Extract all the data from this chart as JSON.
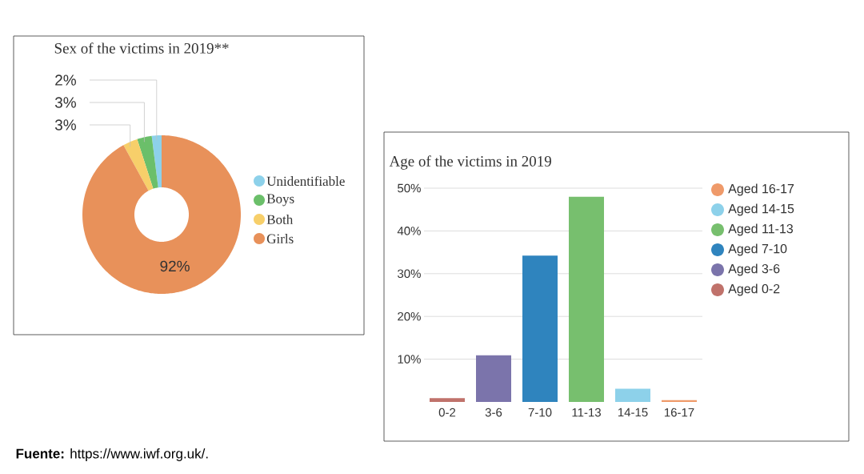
{
  "chart_data": [
    {
      "type": "donut",
      "title": "Sex of the victims in 2019**",
      "categories": [
        "Unidentifiable",
        "Boys",
        "Both",
        "Girls"
      ],
      "values": [
        2,
        3,
        3,
        92
      ],
      "colors": [
        "#8dd1ea",
        "#6bbf6a",
        "#f7cf6a",
        "#e8915a"
      ],
      "value_labels": [
        "2%",
        "3%",
        "3%",
        "92%"
      ],
      "legend": "right"
    },
    {
      "type": "bar",
      "title": "Age of the victims in 2019",
      "categories": [
        "0-2",
        "3-6",
        "7-10",
        "11-13",
        "14-15",
        "16-17"
      ],
      "series": [
        {
          "name": "Aged 16-17",
          "color": "#ef9a6a",
          "values": [
            null,
            null,
            null,
            null,
            null,
            0.4
          ]
        },
        {
          "name": "Aged 14-15",
          "color": "#8dd1ea",
          "values": [
            null,
            null,
            null,
            null,
            3.1,
            null
          ]
        },
        {
          "name": "Aged 11-13",
          "color": "#77bf6e",
          "values": [
            null,
            null,
            null,
            48,
            null,
            null
          ]
        },
        {
          "name": "Aged 7-10",
          "color": "#2f84be",
          "values": [
            null,
            null,
            34.2,
            null,
            null,
            null
          ]
        },
        {
          "name": "Aged 3-6",
          "color": "#7b74ab",
          "values": [
            null,
            10.9,
            null,
            null,
            null,
            null
          ]
        },
        {
          "name": "Aged 0-2",
          "color": "#c0726b",
          "values": [
            0.9,
            null,
            null,
            null,
            null,
            null
          ]
        }
      ],
      "ylim": [
        0,
        50
      ],
      "yticks": [
        {
          "value": 10,
          "label": "10%"
        },
        {
          "value": 20,
          "label": "20%"
        },
        {
          "value": 30,
          "label": "30%"
        },
        {
          "value": 40,
          "label": "40%"
        },
        {
          "value": 50,
          "label": "50%"
        }
      ],
      "grid": "y",
      "legend": "right",
      "annotations": [
        "**Fuente:** https://www.iwf.org.uk/."
      ]
    }
  ]
}
